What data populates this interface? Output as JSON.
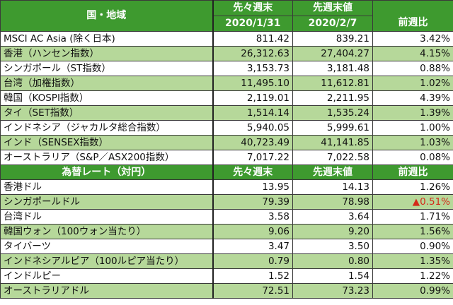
{
  "indices_section": {
    "header": {
      "region": "国・地域",
      "prev_prev_week_label": "先々週末",
      "prev_prev_week_date": "2020/1/31",
      "prev_week_label": "先週末値",
      "prev_week_date": "2020/2/7",
      "change_label": "前週比"
    },
    "rows": [
      {
        "name": "MSCI AC Asia (除く日本)",
        "prev_prev": "811.42",
        "prev": "839.21",
        "change": "3.42%"
      },
      {
        "name": "香港（ハンセン指数）",
        "prev_prev": "26,312.63",
        "prev": "27,404.27",
        "change": "4.15%"
      },
      {
        "name": "シンガポール（ST指数）",
        "prev_prev": "3,153.73",
        "prev": "3,181.48",
        "change": "0.88%"
      },
      {
        "name": "台湾（加権指数）",
        "prev_prev": "11,495.10",
        "prev": "11,612.81",
        "change": "1.02%"
      },
      {
        "name": "韓国（KOSPI指数）",
        "prev_prev": "2,119.01",
        "prev": "2,211.95",
        "change": "4.39%"
      },
      {
        "name": "タイ（SET指数）",
        "prev_prev": "1,514.14",
        "prev": "1,535.24",
        "change": "1.39%"
      },
      {
        "name": "インドネシア（ジャカルタ総合指数）",
        "prev_prev": "5,940.05",
        "prev": "5,999.61",
        "change": "1.00%"
      },
      {
        "name": "インド（SENSEX指数）",
        "prev_prev": "40,723.49",
        "prev": "41,141.85",
        "change": "1.03%"
      },
      {
        "name": "オーストラリア（S&P／ASX200指数）",
        "prev_prev": "7,017.22",
        "prev": "7,022.58",
        "change": "0.08%"
      }
    ]
  },
  "fx_section": {
    "header": {
      "title": "為替レート（対円）",
      "prev_prev_week_label": "先々週末",
      "prev_week_label": "先週末値",
      "change_label": "前週比"
    },
    "rows": [
      {
        "name": "香港ドル",
        "prev_prev": "13.95",
        "prev": "14.13",
        "change": "1.26%"
      },
      {
        "name": "シンガポールドル",
        "prev_prev": "79.39",
        "prev": "78.98",
        "change": "▲0.51%",
        "negative": true
      },
      {
        "name": "台湾ドル",
        "prev_prev": "3.58",
        "prev": "3.64",
        "change": "1.71%"
      },
      {
        "name": "韓国ウォン（100ウォン当たり）",
        "prev_prev": "9.06",
        "prev": "9.20",
        "change": "1.56%"
      },
      {
        "name": "タイバーツ",
        "prev_prev": "3.47",
        "prev": "3.50",
        "change": "0.90%"
      },
      {
        "name": "インドネシアルピア（100ルピア当たり）",
        "prev_prev": "0.79",
        "prev": "0.80",
        "change": "1.35%"
      },
      {
        "name": "インドルピー",
        "prev_prev": "1.52",
        "prev": "1.54",
        "change": "1.22%"
      },
      {
        "name": "オーストラリアドル",
        "prev_prev": "72.51",
        "prev": "73.23",
        "change": "0.99%"
      }
    ]
  },
  "colors": {
    "header_green": "#3e9a2f",
    "row_alt_green": "#b6d89a",
    "negative_red": "#d42a1a"
  }
}
